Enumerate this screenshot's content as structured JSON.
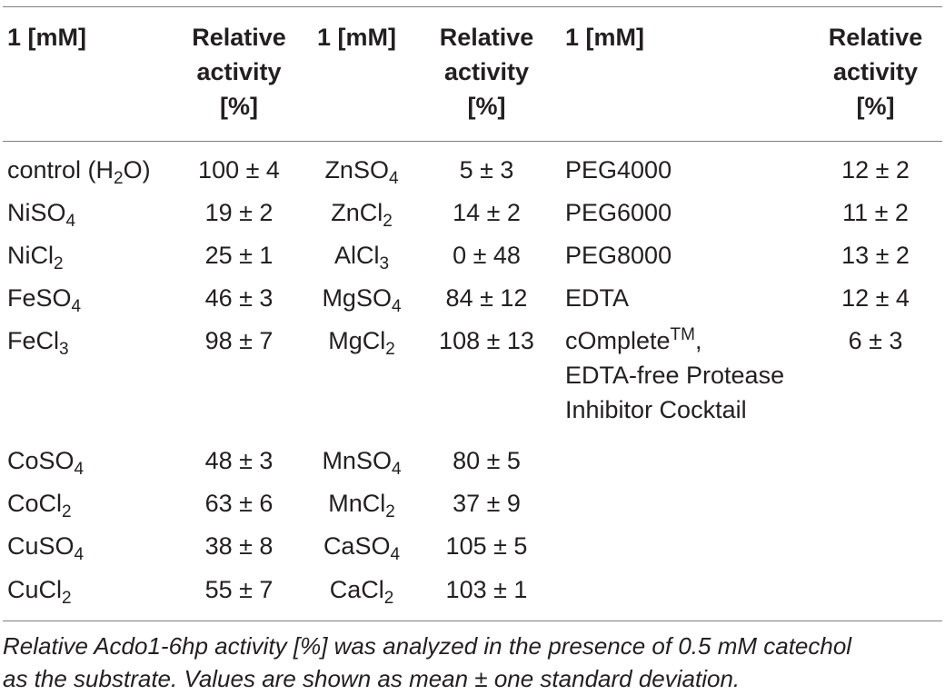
{
  "table": {
    "headers": [
      "1 [mM]",
      [
        "Relative",
        "activity",
        "[%]"
      ],
      "1 [mM]",
      [
        "Relative",
        "activity",
        "[%]"
      ],
      "1 [mM]",
      [
        "Relative",
        "activity",
        "[%]"
      ]
    ],
    "rows": [
      {
        "c1": {
          "base": "control (H",
          "sub": "2",
          "tail": "O)"
        },
        "v1": "100 ± 4",
        "c2": {
          "base": "ZnSO",
          "sub": "4",
          "tail": ""
        },
        "v2": "5 ± 3",
        "c3": {
          "base": "PEG4000"
        },
        "v3": "12 ± 2"
      },
      {
        "c1": {
          "base": "NiSO",
          "sub": "4",
          "tail": ""
        },
        "v1": "19 ± 2",
        "c2": {
          "base": "ZnCl",
          "sub": "2",
          "tail": ""
        },
        "v2": "14 ± 2",
        "c3": {
          "base": "PEG6000"
        },
        "v3": "11 ± 2"
      },
      {
        "c1": {
          "base": "NiCl",
          "sub": "2",
          "tail": ""
        },
        "v1": "25 ± 1",
        "c2": {
          "base": "AlCl",
          "sub": "3",
          "tail": ""
        },
        "v2": "0 ± 48",
        "c3": {
          "base": "PEG8000"
        },
        "v3": "13 ± 2"
      },
      {
        "c1": {
          "base": "FeSO",
          "sub": "4",
          "tail": ""
        },
        "v1": "46 ± 3",
        "c2": {
          "base": "MgSO",
          "sub": "4",
          "tail": ""
        },
        "v2": "84 ± 12",
        "c3": {
          "base": "EDTA"
        },
        "v3": "12 ± 4"
      },
      {
        "c1": {
          "base": "FeCl",
          "sub": "3",
          "tail": ""
        },
        "v1": "98 ± 7",
        "c2": {
          "base": "MgCl",
          "sub": "2",
          "tail": ""
        },
        "v2": "108 ± 13",
        "c3": {
          "line1_base": "cOmplete",
          "line1_sup": "TM",
          "line1_tail": ",",
          "line2": "EDTA-free Protease",
          "line3": "Inhibitor Cocktail"
        },
        "v3": "6 ± 3"
      },
      {
        "c1": {
          "base": "CoSO",
          "sub": "4",
          "tail": ""
        },
        "v1": "48 ± 3",
        "c2": {
          "base": "MnSO",
          "sub": "4",
          "tail": ""
        },
        "v2": "80 ± 5"
      },
      {
        "c1": {
          "base": "CoCl",
          "sub": "2",
          "tail": ""
        },
        "v1": "63 ± 6",
        "c2": {
          "base": "MnCl",
          "sub": "2",
          "tail": ""
        },
        "v2": "37 ± 9"
      },
      {
        "c1": {
          "base": "CuSO",
          "sub": "4",
          "tail": ""
        },
        "v1": "38 ± 8",
        "c2": {
          "base": "CaSO",
          "sub": "4",
          "tail": ""
        },
        "v2": "105 ± 5"
      },
      {
        "c1": {
          "base": "CuCl",
          "sub": "2",
          "tail": ""
        },
        "v1": "55 ± 7",
        "c2": {
          "base": "CaCl",
          "sub": "2",
          "tail": ""
        },
        "v2": "103 ± 1"
      }
    ]
  },
  "footnote": {
    "line1": "Relative Acdo1-6hp activity [%] was analyzed in the presence of 0.5 mM catechol",
    "line2": "as the substrate. Values are shown as mean ± one standard deviation."
  }
}
